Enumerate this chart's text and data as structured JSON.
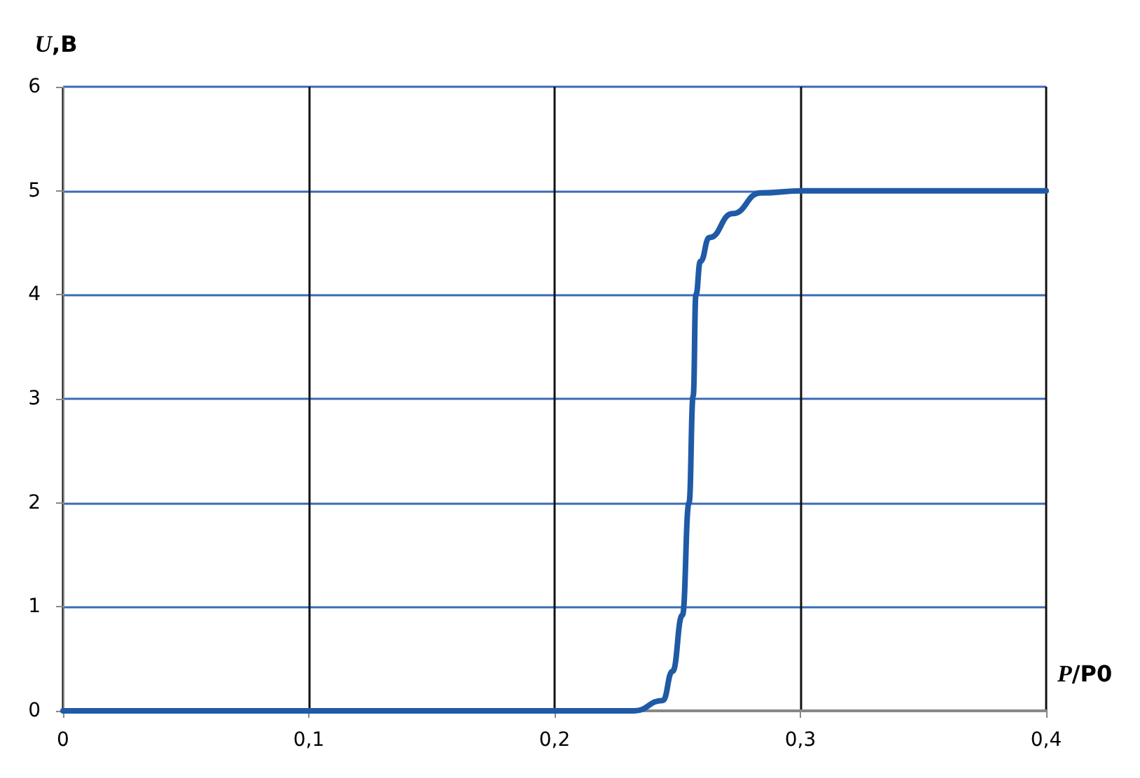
{
  "chart_data": {
    "type": "line",
    "xlabel": "P/P0",
    "ylabel": "U,B",
    "x": [
      0,
      0.1,
      0.191,
      0.2,
      0.2325,
      0.244,
      0.248,
      0.252,
      0.2547,
      0.2564,
      0.2575,
      0.2593,
      0.263,
      0.2724,
      0.2838,
      0.301,
      0.35,
      0.4
    ],
    "series": [
      {
        "color": "#1f5aa6",
        "values": [
          0,
          0,
          0,
          0,
          0,
          0.1,
          0.38,
          0.92,
          2.0,
          3.03,
          4.0,
          4.32,
          4.55,
          4.78,
          4.98,
          5.0,
          5.0,
          5.0
        ]
      }
    ],
    "xlim": [
      0,
      0.4
    ],
    "xticks": [
      0,
      {
        "value": 0.1,
        "label": "0,1"
      },
      {
        "value": 0.2,
        "label": "0,2"
      },
      {
        "value": 0.3,
        "label": "0,3"
      },
      {
        "value": 0.4,
        "label": "0,4"
      }
    ],
    "ylim": [
      0,
      6
    ],
    "yticks": [
      0,
      1,
      2,
      3,
      4,
      5,
      6
    ],
    "grid": true,
    "marker": "none",
    "line_style": "solid"
  }
}
